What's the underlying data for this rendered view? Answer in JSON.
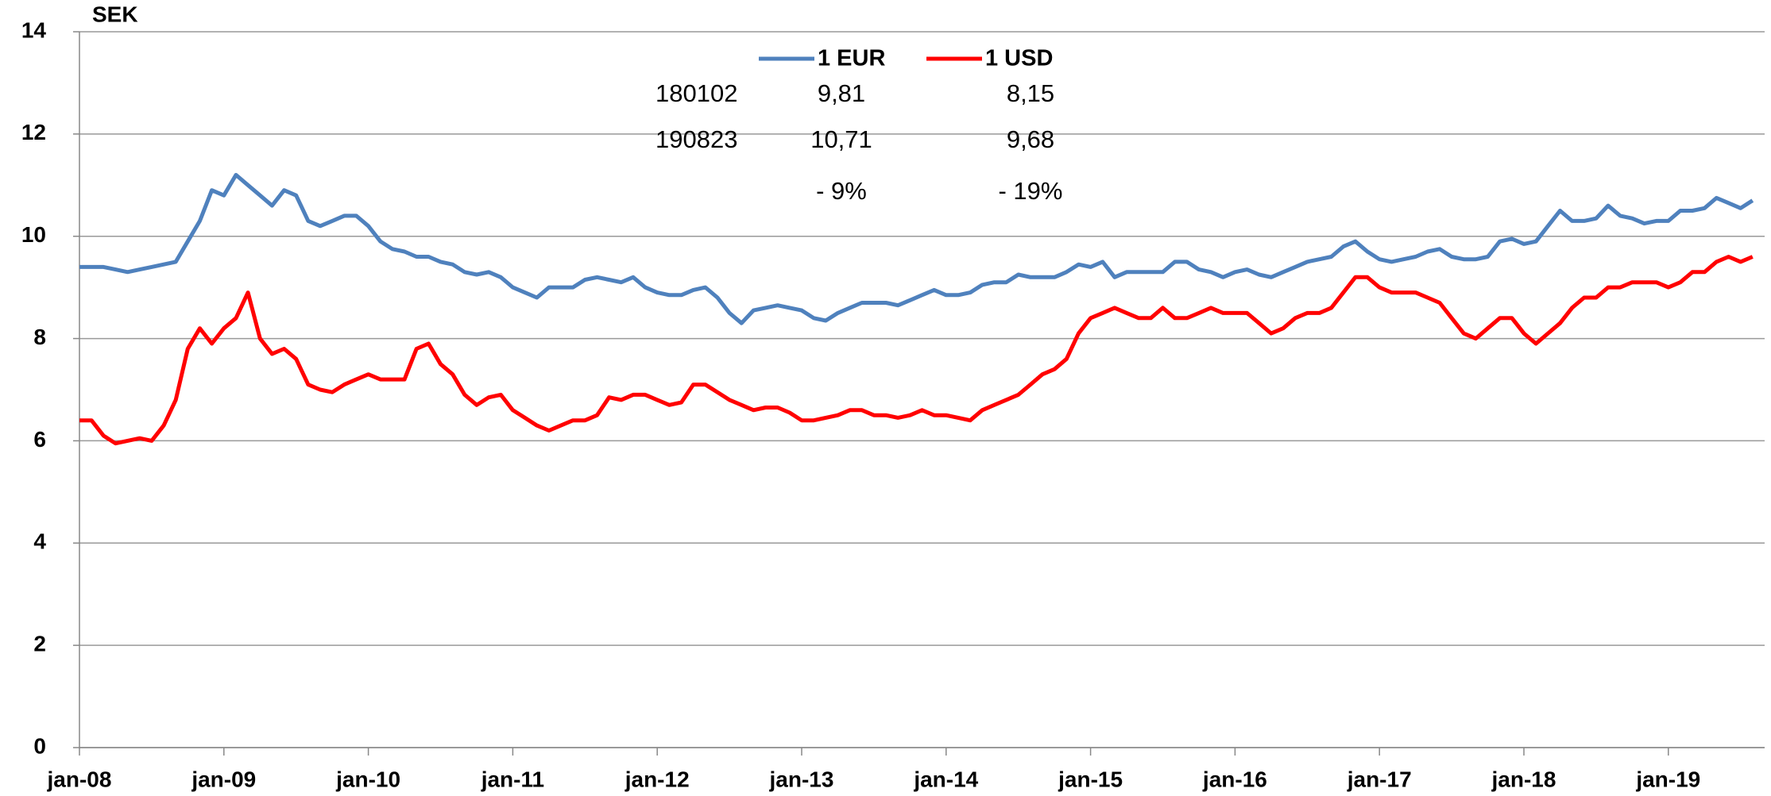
{
  "chart_data": {
    "type": "line",
    "ylabel": "SEK",
    "ylim": [
      0,
      14
    ],
    "yticks": [
      0,
      2,
      4,
      6,
      8,
      10,
      12,
      14
    ],
    "grid": true,
    "categories": [
      "jan-08",
      null,
      null,
      null,
      null,
      null,
      null,
      null,
      null,
      null,
      null,
      null,
      "jan-09",
      null,
      null,
      null,
      null,
      null,
      null,
      null,
      null,
      null,
      null,
      null,
      "jan-10",
      null,
      null,
      null,
      null,
      null,
      null,
      null,
      null,
      null,
      null,
      null,
      "jan-11",
      null,
      null,
      null,
      null,
      null,
      null,
      null,
      null,
      null,
      null,
      null,
      "jan-12",
      null,
      null,
      null,
      null,
      null,
      null,
      null,
      null,
      null,
      null,
      null,
      "jan-13",
      null,
      null,
      null,
      null,
      null,
      null,
      null,
      null,
      null,
      null,
      null,
      "jan-14",
      null,
      null,
      null,
      null,
      null,
      null,
      null,
      null,
      null,
      null,
      null,
      "jan-15",
      null,
      null,
      null,
      null,
      null,
      null,
      null,
      null,
      null,
      null,
      null,
      "jan-16",
      null,
      null,
      null,
      null,
      null,
      null,
      null,
      null,
      null,
      null,
      null,
      "jan-17",
      null,
      null,
      null,
      null,
      null,
      null,
      null,
      null,
      null,
      null,
      null,
      "jan-18",
      null,
      null,
      null,
      null,
      null,
      null,
      null,
      null,
      null,
      null,
      null,
      "jan-19",
      null,
      null,
      null,
      null,
      null,
      null,
      null
    ],
    "series": [
      {
        "name": "1 EUR",
        "color": "#4f81bd",
        "values": [
          9.4,
          9.4,
          9.4,
          9.35,
          9.3,
          9.35,
          9.4,
          9.45,
          9.5,
          9.9,
          10.3,
          10.9,
          10.8,
          11.2,
          11.0,
          10.8,
          10.6,
          10.9,
          10.8,
          10.3,
          10.2,
          10.3,
          10.4,
          10.4,
          10.2,
          9.9,
          9.75,
          9.7,
          9.6,
          9.6,
          9.5,
          9.45,
          9.3,
          9.25,
          9.3,
          9.2,
          9.0,
          8.9,
          8.8,
          9.0,
          9.0,
          9.0,
          9.15,
          9.2,
          9.15,
          9.1,
          9.2,
          9.0,
          8.9,
          8.85,
          8.85,
          8.95,
          9.0,
          8.8,
          8.5,
          8.3,
          8.55,
          8.6,
          8.65,
          8.6,
          8.55,
          8.4,
          8.35,
          8.5,
          8.6,
          8.7,
          8.7,
          8.7,
          8.65,
          8.75,
          8.85,
          8.95,
          8.85,
          8.85,
          8.9,
          9.05,
          9.1,
          9.1,
          9.25,
          9.2,
          9.2,
          9.2,
          9.3,
          9.45,
          9.4,
          9.5,
          9.2,
          9.3,
          9.3,
          9.3,
          9.3,
          9.5,
          9.5,
          9.35,
          9.3,
          9.2,
          9.3,
          9.35,
          9.25,
          9.2,
          9.3,
          9.4,
          9.5,
          9.55,
          9.6,
          9.8,
          9.9,
          9.7,
          9.55,
          9.5,
          9.55,
          9.6,
          9.7,
          9.75,
          9.6,
          9.55,
          9.55,
          9.6,
          9.9,
          9.95,
          9.85,
          9.9,
          10.2,
          10.5,
          10.3,
          10.3,
          10.35,
          10.6,
          10.4,
          10.35,
          10.25,
          10.3,
          10.3,
          10.5,
          10.5,
          10.55,
          10.75,
          10.65,
          10.55,
          10.7
        ]
      },
      {
        "name": "1 USD",
        "color": "#ff0000",
        "values": [
          6.4,
          6.4,
          6.1,
          5.95,
          6.0,
          6.05,
          6.0,
          6.3,
          6.8,
          7.8,
          8.2,
          7.9,
          8.2,
          8.4,
          8.9,
          8.0,
          7.7,
          7.8,
          7.6,
          7.1,
          7.0,
          6.95,
          7.1,
          7.2,
          7.3,
          7.2,
          7.2,
          7.2,
          7.8,
          7.9,
          7.5,
          7.3,
          6.9,
          6.7,
          6.85,
          6.9,
          6.6,
          6.45,
          6.3,
          6.2,
          6.3,
          6.4,
          6.4,
          6.5,
          6.85,
          6.8,
          6.9,
          6.9,
          6.8,
          6.7,
          6.75,
          7.1,
          7.1,
          6.95,
          6.8,
          6.7,
          6.6,
          6.65,
          6.65,
          6.55,
          6.4,
          6.4,
          6.45,
          6.5,
          6.6,
          6.6,
          6.5,
          6.5,
          6.45,
          6.5,
          6.6,
          6.5,
          6.5,
          6.45,
          6.4,
          6.6,
          6.7,
          6.8,
          6.9,
          7.1,
          7.3,
          7.4,
          7.6,
          8.1,
          8.4,
          8.5,
          8.6,
          8.5,
          8.4,
          8.4,
          8.6,
          8.4,
          8.4,
          8.5,
          8.6,
          8.5,
          8.5,
          8.5,
          8.3,
          8.1,
          8.2,
          8.4,
          8.5,
          8.5,
          8.6,
          8.9,
          9.2,
          9.2,
          9.0,
          8.9,
          8.9,
          8.9,
          8.8,
          8.7,
          8.4,
          8.1,
          8.0,
          8.2,
          8.4,
          8.4,
          8.1,
          7.9,
          8.1,
          8.3,
          8.6,
          8.8,
          8.8,
          9.0,
          9.0,
          9.1,
          9.1,
          9.1,
          9.0,
          9.1,
          9.3,
          9.3,
          9.5,
          9.6,
          9.5,
          9.6
        ]
      }
    ],
    "annotations": {
      "rows": [
        [
          "180102",
          "9,81",
          "8,15"
        ],
        [
          "190823",
          "10,71",
          "9,68"
        ],
        [
          null,
          "- 9%",
          "- 19%"
        ]
      ]
    }
  }
}
